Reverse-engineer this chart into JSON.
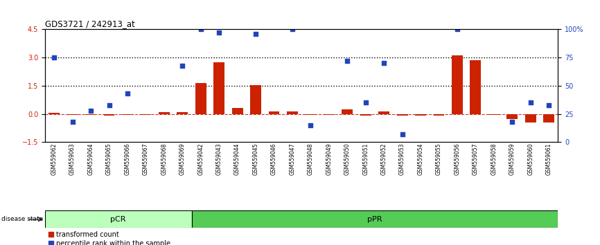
{
  "title": "GDS3721 / 242913_at",
  "samples": [
    "GSM559062",
    "GSM559063",
    "GSM559064",
    "GSM559065",
    "GSM559066",
    "GSM559067",
    "GSM559068",
    "GSM559069",
    "GSM559042",
    "GSM559043",
    "GSM559044",
    "GSM559045",
    "GSM559046",
    "GSM559047",
    "GSM559048",
    "GSM559049",
    "GSM559050",
    "GSM559051",
    "GSM559052",
    "GSM559053",
    "GSM559054",
    "GSM559055",
    "GSM559056",
    "GSM559057",
    "GSM559058",
    "GSM559059",
    "GSM559060",
    "GSM559061"
  ],
  "pCR_count": 8,
  "pPR_count": 20,
  "transformed_count": [
    0.05,
    -0.05,
    -0.05,
    -0.08,
    -0.05,
    -0.05,
    0.08,
    0.08,
    1.65,
    2.75,
    0.3,
    1.55,
    0.15,
    0.12,
    -0.05,
    -0.05,
    0.25,
    -0.08,
    0.12,
    -0.08,
    -0.08,
    -0.08,
    3.1,
    2.85,
    -0.05,
    -0.28,
    -0.45,
    -0.45
  ],
  "percentile_rank_pct": [
    75,
    18,
    28,
    33,
    43,
    null,
    null,
    68,
    100,
    97,
    null,
    96,
    null,
    100,
    15,
    null,
    72,
    35,
    70,
    7,
    null,
    null,
    100,
    null,
    null,
    18,
    35,
    33
  ],
  "ylim_left": [
    -1.5,
    4.5
  ],
  "ylim_right": [
    0,
    100
  ],
  "bar_color": "#cc2200",
  "dot_color": "#2244bb",
  "dashed_line_color": "#cc3333",
  "dotted_line_color": "#000000",
  "pCR_color": "#bbffbb",
  "pPR_color": "#55cc55"
}
